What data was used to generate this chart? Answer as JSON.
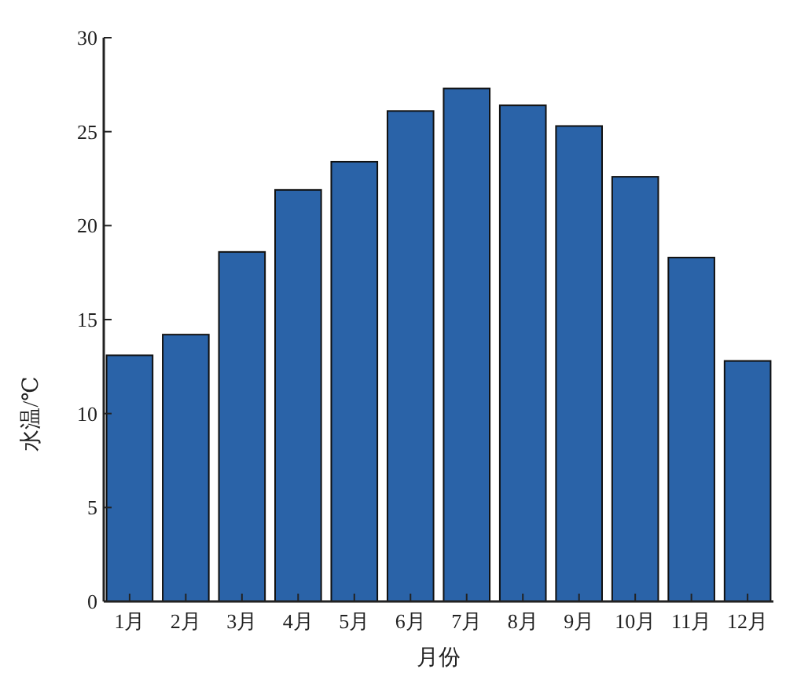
{
  "chart_data": {
    "type": "bar",
    "xlabel": "月份",
    "ylabel": "水温/℃",
    "categories": [
      "1月",
      "2月",
      "3月",
      "4月",
      "5月",
      "6月",
      "7月",
      "8月",
      "9月",
      "10月",
      "11月",
      "12月"
    ],
    "values": [
      13.1,
      14.2,
      18.6,
      21.9,
      23.4,
      26.1,
      27.3,
      26.4,
      25.3,
      22.6,
      18.3,
      12.8
    ],
    "color": "#2a63a8",
    "ylim": [
      0,
      30
    ],
    "yticks": [
      0,
      5,
      10,
      15,
      20,
      25,
      30
    ]
  }
}
